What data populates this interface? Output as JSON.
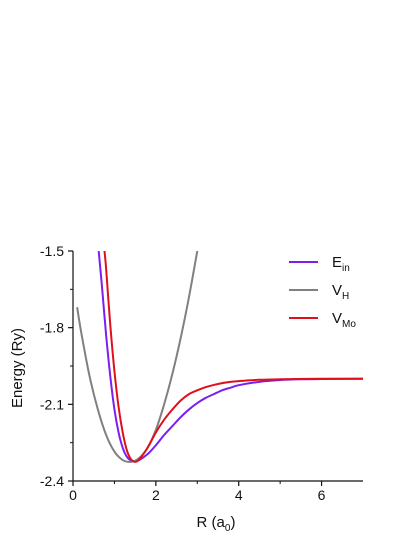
{
  "chart_data": {
    "type": "line",
    "title": "",
    "xlabel_main": "R (a",
    "xlabel_sub": "0",
    "xlabel_close": ")",
    "ylabel": "Energy (Ry)",
    "xlim": [
      0,
      7
    ],
    "ylim": [
      -2.4,
      -1.5
    ],
    "xticks": [
      0,
      2,
      4,
      6
    ],
    "yticks": [
      -2.4,
      -2.1,
      -1.8,
      -1.5
    ],
    "ytick_labels": [
      "-2.4",
      "-2.1",
      "-1.8",
      "-1.5"
    ],
    "grid": false,
    "legend_position": "top-right",
    "series": [
      {
        "key": "E",
        "name_main": "E",
        "name_sub": "in",
        "color": "#7a1ff0",
        "x": [
          0.62,
          0.7,
          0.8,
          0.9,
          1.0,
          1.1,
          1.2,
          1.3,
          1.4,
          1.5,
          1.6,
          1.8,
          2.0,
          2.2,
          2.4,
          2.6,
          2.8,
          3.0,
          3.2,
          3.4,
          3.6,
          3.8,
          4.0,
          4.5,
          5.0,
          5.5,
          6.0,
          7.0
        ],
        "y": [
          -1.5,
          -1.64,
          -1.83,
          -1.99,
          -2.12,
          -2.21,
          -2.27,
          -2.305,
          -2.32,
          -2.322,
          -2.318,
          -2.295,
          -2.26,
          -2.22,
          -2.185,
          -2.15,
          -2.12,
          -2.095,
          -2.075,
          -2.06,
          -2.045,
          -2.035,
          -2.025,
          -2.012,
          -2.005,
          -2.002,
          -2.001,
          -2.0
        ]
      },
      {
        "key": "VH",
        "name_main": "V",
        "name_sub": "H",
        "color": "#808080",
        "x": [
          0.1,
          0.2,
          0.4,
          0.6,
          0.8,
          1.0,
          1.2,
          1.4,
          1.6,
          1.8,
          2.0,
          2.2,
          2.4,
          2.6,
          2.8,
          3.0
        ],
        "y": [
          -1.72,
          -1.82,
          -1.99,
          -2.12,
          -2.22,
          -2.285,
          -2.318,
          -2.325,
          -2.31,
          -2.27,
          -2.2,
          -2.1,
          -1.98,
          -1.84,
          -1.68,
          -1.5
        ]
      },
      {
        "key": "VMo",
        "name_main": "V",
        "name_sub": "Mo",
        "color": "#e0101a",
        "x": [
          0.76,
          0.8,
          0.9,
          1.0,
          1.1,
          1.2,
          1.3,
          1.4,
          1.5,
          1.6,
          1.8,
          2.0,
          2.2,
          2.4,
          2.6,
          2.8,
          3.0,
          3.2,
          3.4,
          3.6,
          3.8,
          4.0,
          4.5,
          5.0,
          6.0,
          7.0
        ],
        "y": [
          -1.5,
          -1.57,
          -1.79,
          -1.97,
          -2.11,
          -2.21,
          -2.28,
          -2.315,
          -2.325,
          -2.315,
          -2.27,
          -2.21,
          -2.16,
          -2.12,
          -2.085,
          -2.06,
          -2.045,
          -2.033,
          -2.024,
          -2.017,
          -2.012,
          -2.009,
          -2.004,
          -2.002,
          -2.0,
          -2.0
        ]
      }
    ]
  }
}
